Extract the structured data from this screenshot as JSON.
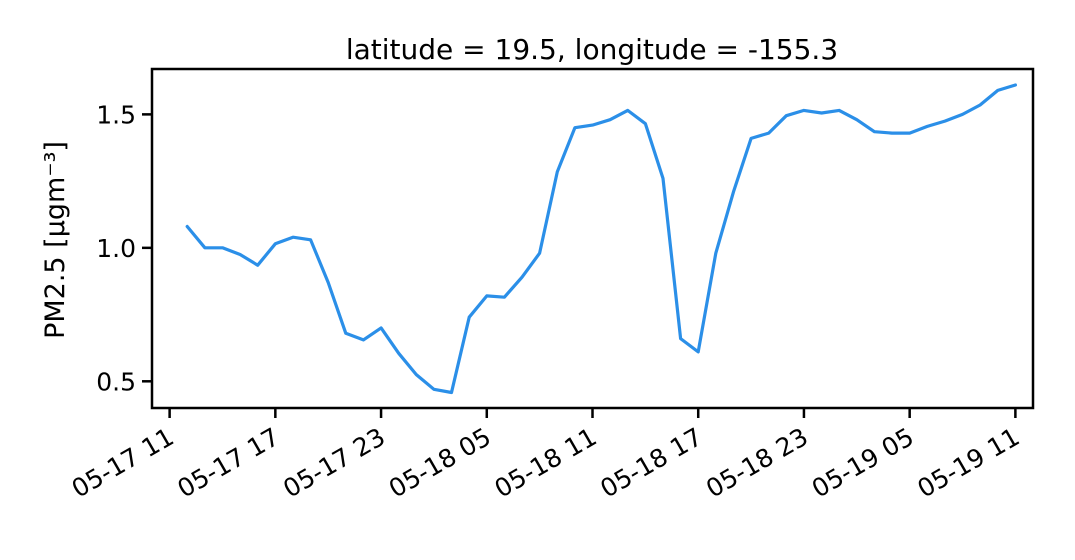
{
  "chart_data": {
    "type": "line",
    "title": "latitude = 19.5, longitude = -155.3",
    "xlabel": "",
    "ylabel": "PM2.5 [μgm⁻³]",
    "ylim": [
      0.4,
      1.67
    ],
    "yticks": [
      {
        "value": 0.5,
        "label": "0.5"
      },
      {
        "value": 1.0,
        "label": "1.0"
      },
      {
        "value": 1.5,
        "label": "1.5"
      }
    ],
    "xlim": [
      "2023-05-17 10:00",
      "2023-05-19 12:00"
    ],
    "xticks": [
      {
        "value": "2023-05-17 11:00",
        "label": "05-17 11"
      },
      {
        "value": "2023-05-17 17:00",
        "label": "05-17 17"
      },
      {
        "value": "2023-05-17 23:00",
        "label": "05-17 23"
      },
      {
        "value": "2023-05-18 05:00",
        "label": "05-18 05"
      },
      {
        "value": "2023-05-18 11:00",
        "label": "05-18 11"
      },
      {
        "value": "2023-05-18 17:00",
        "label": "05-18 17"
      },
      {
        "value": "2023-05-18 23:00",
        "label": "05-18 23"
      },
      {
        "value": "2023-05-19 05:00",
        "label": "05-19 05"
      },
      {
        "value": "2023-05-19 11:00",
        "label": "05-19 11"
      }
    ],
    "grid": false,
    "line_color": "#2b8fe8",
    "series": [
      {
        "x": [
          "2023-05-17 12:00",
          "2023-05-17 13:00",
          "2023-05-17 14:00",
          "2023-05-17 15:00",
          "2023-05-17 16:00",
          "2023-05-17 17:00",
          "2023-05-17 18:00",
          "2023-05-17 19:00",
          "2023-05-17 20:00",
          "2023-05-17 21:00",
          "2023-05-17 22:00",
          "2023-05-17 23:00",
          "2023-05-18 00:00",
          "2023-05-18 01:00",
          "2023-05-18 02:00",
          "2023-05-18 03:00",
          "2023-05-18 04:00",
          "2023-05-18 05:00",
          "2023-05-18 06:00",
          "2023-05-18 07:00",
          "2023-05-18 08:00",
          "2023-05-18 09:00",
          "2023-05-18 10:00",
          "2023-05-18 11:00",
          "2023-05-18 12:00",
          "2023-05-18 13:00",
          "2023-05-18 14:00",
          "2023-05-18 15:00",
          "2023-05-18 16:00",
          "2023-05-18 17:00",
          "2023-05-18 18:00",
          "2023-05-18 19:00",
          "2023-05-18 20:00",
          "2023-05-18 21:00",
          "2023-05-18 22:00",
          "2023-05-18 23:00",
          "2023-05-19 00:00",
          "2023-05-19 01:00",
          "2023-05-19 02:00",
          "2023-05-19 03:00",
          "2023-05-19 04:00",
          "2023-05-19 05:00",
          "2023-05-19 06:00",
          "2023-05-19 07:00",
          "2023-05-19 08:00",
          "2023-05-19 09:00",
          "2023-05-19 10:00",
          "2023-05-19 11:00"
        ],
        "y": [
          1.08,
          1.0,
          1.0,
          0.975,
          0.935,
          1.015,
          1.04,
          1.03,
          0.87,
          0.68,
          0.655,
          0.7,
          0.605,
          0.525,
          0.47,
          0.458,
          0.74,
          0.82,
          0.815,
          0.89,
          0.98,
          1.285,
          1.45,
          1.46,
          1.48,
          1.515,
          1.465,
          1.26,
          0.66,
          0.61,
          0.98,
          1.21,
          1.41,
          1.43,
          1.495,
          1.515,
          1.505,
          1.515,
          1.48,
          1.435,
          1.43,
          1.43,
          1.455,
          1.475,
          1.5,
          1.535,
          1.59,
          1.61
        ]
      }
    ]
  }
}
